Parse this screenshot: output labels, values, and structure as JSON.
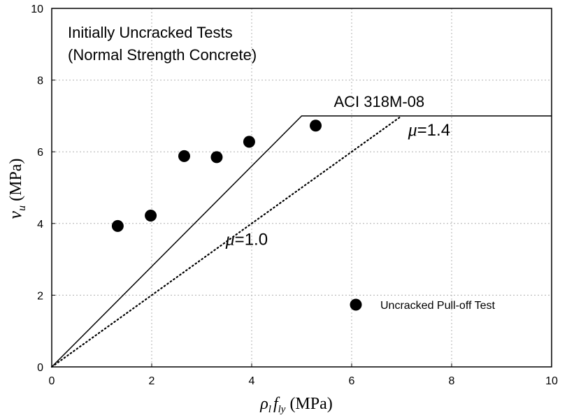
{
  "chart_data": {
    "type": "scatter",
    "title_lines": [
      "Initially Uncracked Tests",
      "(Normal Strength Concrete)"
    ],
    "xlabel": {
      "symbol": "ρ",
      "sub1": "l",
      "symbol2": "f",
      "sub2": "ly",
      "unit": "(MPa)"
    },
    "ylabel": {
      "symbol": "v",
      "sub": "u",
      "unit": "(MPa)"
    },
    "xlim": [
      0,
      10
    ],
    "ylim": [
      0,
      10
    ],
    "xticks": [
      0,
      2,
      4,
      6,
      8,
      10
    ],
    "yticks": [
      0,
      2,
      4,
      6,
      8,
      10
    ],
    "xtick_labels": [
      "0",
      "2",
      "4",
      "6",
      "8",
      "10"
    ],
    "ytick_labels": [
      "0",
      "2",
      "4",
      "6",
      "8",
      "10"
    ],
    "grid": true,
    "series": [
      {
        "name": "Uncracked Pull-off Test",
        "kind": "scatter",
        "marker": "filled-circle",
        "color": "#000000",
        "points": [
          {
            "x": 1.32,
            "y": 3.93
          },
          {
            "x": 1.98,
            "y": 4.22
          },
          {
            "x": 2.65,
            "y": 5.88
          },
          {
            "x": 3.3,
            "y": 5.85
          },
          {
            "x": 3.95,
            "y": 6.28
          },
          {
            "x": 5.28,
            "y": 6.73
          }
        ]
      },
      {
        "name": "ACI 318M-08",
        "kind": "line",
        "style": "solid",
        "color": "#000000",
        "points": [
          {
            "x": 0,
            "y": 0
          },
          {
            "x": 5.0,
            "y": 7.0
          },
          {
            "x": 10,
            "y": 7.0
          }
        ]
      },
      {
        "kind": "line",
        "style": "dotted",
        "color": "#000000",
        "points": [
          {
            "x": 0,
            "y": 0
          },
          {
            "x": 7.0,
            "y": 7.0
          }
        ]
      }
    ],
    "annotations": [
      {
        "kind": "text",
        "text": "ACI 318M-08",
        "x": 6.55,
        "y": 7.25
      },
      {
        "kind": "mu",
        "symbol": "μ",
        "eq": "=1.4",
        "x": 7.55,
        "y": 6.45
      },
      {
        "kind": "mu",
        "symbol": "μ",
        "eq": "=1.0",
        "x": 3.9,
        "y": 3.4
      }
    ],
    "legend": {
      "position": "bottom-right",
      "label": "Uncracked Pull-off Test"
    }
  }
}
